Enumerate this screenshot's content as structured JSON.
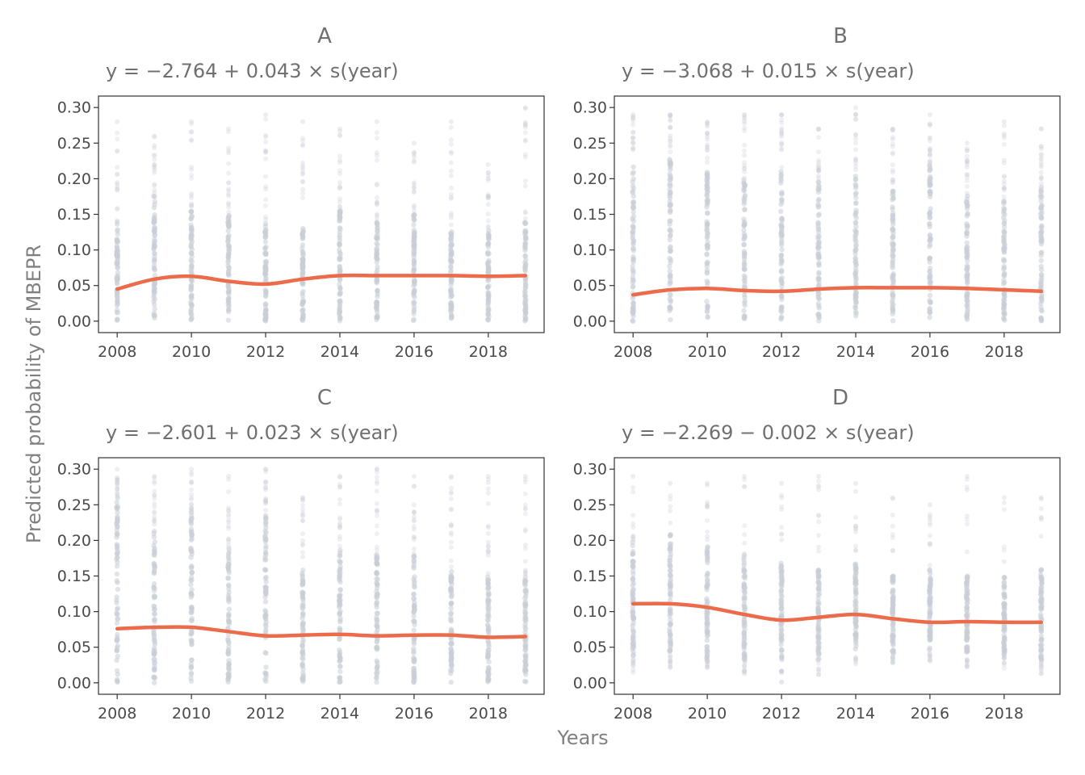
{
  "figure": {
    "xlabel": "Years",
    "ylabel": "Predicted probability of MBEPR",
    "colors": {
      "points": "#c9cdd6",
      "smooth_line": "#ec6b4b",
      "text": "#707070"
    }
  },
  "chart_data": [
    {
      "type": "scatter",
      "title": "A",
      "subtitle": "y = −2.764 + 0.043 × s(year)",
      "xlim": [
        2008,
        2019
      ],
      "ylim": [
        0.0,
        0.3
      ],
      "xticks": [
        "2008",
        "2010",
        "2012",
        "2014",
        "2016",
        "2018"
      ],
      "yticks": [
        "0.00",
        "0.05",
        "0.10",
        "0.15",
        "0.20",
        "0.25",
        "0.30"
      ],
      "grid": false,
      "x": [
        2008,
        2009,
        2010,
        2011,
        2012,
        2013,
        2014,
        2015,
        2016,
        2017,
        2018,
        2019
      ],
      "point_range_max": [
        0.28,
        0.26,
        0.28,
        0.27,
        0.29,
        0.28,
        0.27,
        0.28,
        0.25,
        0.28,
        0.22,
        0.3
      ],
      "point_dense_max": [
        0.14,
        0.18,
        0.16,
        0.15,
        0.14,
        0.13,
        0.16,
        0.14,
        0.15,
        0.13,
        0.13,
        0.14
      ],
      "smooth": {
        "name": "smooth fit",
        "x": [
          2008,
          2009,
          2010,
          2011,
          2012,
          2013,
          2014,
          2015,
          2016,
          2017,
          2018,
          2019
        ],
        "y": [
          0.045,
          0.059,
          0.063,
          0.056,
          0.052,
          0.059,
          0.064,
          0.064,
          0.064,
          0.064,
          0.063,
          0.064
        ]
      }
    },
    {
      "type": "scatter",
      "title": "B",
      "subtitle": "y = −3.068 + 0.015 × s(year)",
      "xlim": [
        2008,
        2019
      ],
      "ylim": [
        0.0,
        0.3
      ],
      "xticks": [
        "2008",
        "2010",
        "2012",
        "2014",
        "2016",
        "2018"
      ],
      "yticks": [
        "0.00",
        "0.05",
        "0.10",
        "0.15",
        "0.20",
        "0.25",
        "0.30"
      ],
      "grid": false,
      "x": [
        2008,
        2009,
        2010,
        2011,
        2012,
        2013,
        2014,
        2015,
        2016,
        2017,
        2018,
        2019
      ],
      "point_range_max": [
        0.29,
        0.29,
        0.28,
        0.29,
        0.29,
        0.27,
        0.3,
        0.27,
        0.29,
        0.25,
        0.28,
        0.27
      ],
      "point_dense_max": [
        0.22,
        0.23,
        0.21,
        0.2,
        0.21,
        0.2,
        0.21,
        0.19,
        0.22,
        0.18,
        0.17,
        0.19
      ],
      "smooth": {
        "name": "smooth fit",
        "x": [
          2008,
          2009,
          2010,
          2011,
          2012,
          2013,
          2014,
          2015,
          2016,
          2017,
          2018,
          2019
        ],
        "y": [
          0.037,
          0.044,
          0.046,
          0.043,
          0.042,
          0.045,
          0.047,
          0.047,
          0.047,
          0.046,
          0.044,
          0.042
        ]
      }
    },
    {
      "type": "scatter",
      "title": "C",
      "subtitle": "y = −2.601 + 0.023 × s(year)",
      "xlim": [
        2008,
        2019
      ],
      "ylim": [
        0.0,
        0.3
      ],
      "xticks": [
        "2008",
        "2010",
        "2012",
        "2014",
        "2016",
        "2018"
      ],
      "yticks": [
        "0.00",
        "0.05",
        "0.10",
        "0.15",
        "0.20",
        "0.25",
        "0.30"
      ],
      "grid": false,
      "x": [
        2008,
        2009,
        2010,
        2011,
        2012,
        2013,
        2014,
        2015,
        2016,
        2017,
        2018,
        2019
      ],
      "point_range_max": [
        0.3,
        0.29,
        0.3,
        0.29,
        0.3,
        0.26,
        0.29,
        0.3,
        0.29,
        0.29,
        0.29,
        0.29
      ],
      "point_dense_max": [
        0.26,
        0.22,
        0.24,
        0.19,
        0.24,
        0.16,
        0.19,
        0.18,
        0.18,
        0.16,
        0.15,
        0.15
      ],
      "smooth": {
        "name": "smooth fit",
        "x": [
          2008,
          2009,
          2010,
          2011,
          2012,
          2013,
          2014,
          2015,
          2016,
          2017,
          2018,
          2019
        ],
        "y": [
          0.076,
          0.078,
          0.078,
          0.072,
          0.066,
          0.067,
          0.068,
          0.066,
          0.067,
          0.067,
          0.064,
          0.065
        ]
      }
    },
    {
      "type": "scatter",
      "title": "D",
      "subtitle": "y = −2.269 − 0.002 × s(year)",
      "xlim": [
        2008,
        2019
      ],
      "ylim": [
        0.0,
        0.3
      ],
      "xticks": [
        "2008",
        "2010",
        "2012",
        "2014",
        "2016",
        "2018"
      ],
      "yticks": [
        "0.00",
        "0.05",
        "0.10",
        "0.15",
        "0.20",
        "0.25",
        "0.30"
      ],
      "grid": false,
      "x": [
        2008,
        2009,
        2010,
        2011,
        2012,
        2013,
        2014,
        2015,
        2016,
        2017,
        2018,
        2019
      ],
      "point_range_min": [
        0.01,
        0.02,
        0.02,
        0.01,
        0.0,
        0.01,
        0.02,
        0.02,
        0.03,
        0.02,
        0.02,
        0.01
      ],
      "point_range_max": [
        0.29,
        0.28,
        0.28,
        0.29,
        0.28,
        0.29,
        0.28,
        0.26,
        0.25,
        0.29,
        0.26,
        0.26
      ],
      "point_dense_min": [
        0.03,
        0.04,
        0.03,
        0.03,
        0.03,
        0.03,
        0.04,
        0.04,
        0.04,
        0.04,
        0.04,
        0.03
      ],
      "point_dense_max": [
        0.2,
        0.21,
        0.2,
        0.18,
        0.17,
        0.16,
        0.17,
        0.15,
        0.16,
        0.15,
        0.15,
        0.16
      ],
      "smooth": {
        "name": "smooth fit",
        "x": [
          2008,
          2009,
          2010,
          2011,
          2012,
          2013,
          2014,
          2015,
          2016,
          2017,
          2018,
          2019
        ],
        "y": [
          0.111,
          0.111,
          0.106,
          0.096,
          0.088,
          0.092,
          0.096,
          0.09,
          0.085,
          0.086,
          0.085,
          0.085
        ]
      }
    }
  ]
}
